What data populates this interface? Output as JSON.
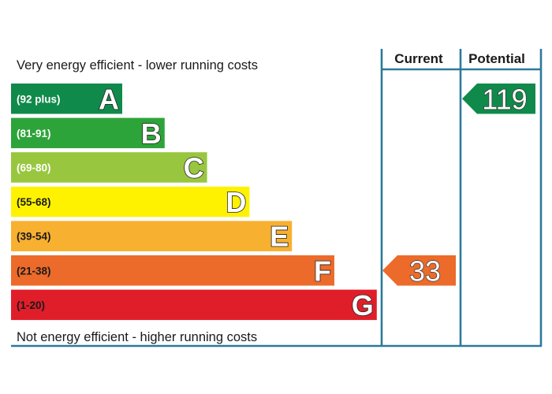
{
  "chart_data": {
    "type": "bar",
    "title": "",
    "top_caption": "Very energy efficient - lower running costs",
    "bottom_caption": "Not energy efficient - higher running costs",
    "columns": [
      "Current",
      "Potential"
    ],
    "bands": [
      {
        "letter": "A",
        "range": "(92 plus)",
        "min": 92,
        "max": 120,
        "color": "#0f8a4a",
        "range_text_color": "#ffffff"
      },
      {
        "letter": "B",
        "range": "(81-91)",
        "min": 81,
        "max": 91,
        "color": "#2da43a",
        "range_text_color": "#ffffff"
      },
      {
        "letter": "C",
        "range": "(69-80)",
        "min": 69,
        "max": 80,
        "color": "#98c73f",
        "range_text_color": "#ffffff"
      },
      {
        "letter": "D",
        "range": "(55-68)",
        "min": 55,
        "max": 68,
        "color": "#fff200",
        "range_text_color": "#1a1a1a"
      },
      {
        "letter": "E",
        "range": "(39-54)",
        "min": 39,
        "max": 54,
        "color": "#f8b030",
        "range_text_color": "#1a1a1a"
      },
      {
        "letter": "F",
        "range": "(21-38)",
        "min": 21,
        "max": 38,
        "color": "#ec6b2a",
        "range_text_color": "#1a1a1a"
      },
      {
        "letter": "G",
        "range": "(1-20)",
        "min": 1,
        "max": 20,
        "color": "#e01e2a",
        "range_text_color": "#1a1a1a"
      }
    ],
    "ratings": [
      {
        "column": "Current",
        "value": 33,
        "band": "F",
        "color": "#ec6b2a"
      },
      {
        "column": "Potential",
        "value": 119,
        "band": "A",
        "color": "#0f8a4a"
      }
    ]
  }
}
